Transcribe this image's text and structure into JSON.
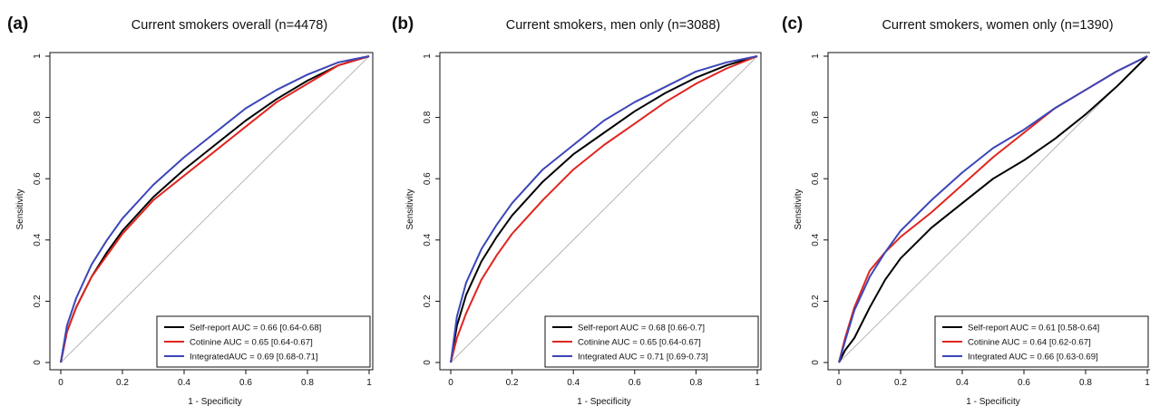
{
  "chart_data": [
    {
      "type": "line",
      "panel_label": "(a)",
      "title": "Current smokers overall (n=4478)",
      "xlabel": "1 - Specificity",
      "ylabel": "Sensitivity",
      "xlim": [
        0,
        1
      ],
      "ylim": [
        0,
        1
      ],
      "xticks": [
        0,
        0.2,
        0.4,
        0.6,
        0.8,
        1
      ],
      "yticks": [
        0,
        0.2,
        0.4,
        0.6,
        0.8,
        1
      ],
      "xtick_labels": [
        "0",
        "0.2",
        "0.4",
        "0.6",
        "0.8",
        "1"
      ],
      "ytick_labels": [
        "0",
        "0.2",
        "0.4",
        "0.6",
        "0.8",
        "1"
      ],
      "grid": false,
      "legend_position": "bottom-right",
      "reference_line": true,
      "series": [
        {
          "name": "Self-report AUC = 0.66 [0.64-0.68]",
          "color": "#000000",
          "x": [
            0,
            0.02,
            0.05,
            0.1,
            0.15,
            0.2,
            0.3,
            0.4,
            0.5,
            0.6,
            0.7,
            0.8,
            0.9,
            1
          ],
          "y": [
            0,
            0.1,
            0.18,
            0.28,
            0.36,
            0.43,
            0.54,
            0.63,
            0.71,
            0.79,
            0.86,
            0.92,
            0.97,
            1
          ]
        },
        {
          "name": "Cotinine AUC = 0.65 [0.64-0.67]",
          "color": "#e0251f",
          "x": [
            0,
            0.02,
            0.05,
            0.1,
            0.15,
            0.2,
            0.3,
            0.4,
            0.5,
            0.6,
            0.7,
            0.8,
            0.9,
            1
          ],
          "y": [
            0,
            0.1,
            0.18,
            0.28,
            0.35,
            0.42,
            0.53,
            0.61,
            0.69,
            0.77,
            0.85,
            0.91,
            0.97,
            1
          ]
        },
        {
          "name": "IntegratedAUC = 0.69 [0.68-0.71]",
          "color": "#3b46b8",
          "x": [
            0,
            0.02,
            0.05,
            0.1,
            0.15,
            0.2,
            0.3,
            0.4,
            0.5,
            0.6,
            0.7,
            0.8,
            0.9,
            1
          ],
          "y": [
            0,
            0.12,
            0.21,
            0.32,
            0.4,
            0.47,
            0.58,
            0.67,
            0.75,
            0.83,
            0.89,
            0.94,
            0.98,
            1
          ]
        }
      ]
    },
    {
      "type": "line",
      "panel_label": "(b)",
      "title": "Current smokers, men only (n=3088)",
      "xlabel": "1 - Specificity",
      "ylabel": "Sensitivity",
      "xlim": [
        0,
        1
      ],
      "ylim": [
        0,
        1
      ],
      "xticks": [
        0,
        0.2,
        0.4,
        0.6,
        0.8,
        1
      ],
      "yticks": [
        0,
        0.2,
        0.4,
        0.6,
        0.8,
        1
      ],
      "xtick_labels": [
        "0",
        "0.2",
        "0.4",
        "0.6",
        "0.8",
        "1"
      ],
      "ytick_labels": [
        "0",
        "0.2",
        "0.4",
        "0.6",
        "0.8",
        "1"
      ],
      "grid": false,
      "legend_position": "bottom-right",
      "reference_line": true,
      "series": [
        {
          "name": "Self-report AUC = 0.68 [0.66-0.7]",
          "color": "#000000",
          "x": [
            0,
            0.02,
            0.05,
            0.1,
            0.15,
            0.2,
            0.3,
            0.4,
            0.5,
            0.6,
            0.7,
            0.8,
            0.9,
            1
          ],
          "y": [
            0,
            0.12,
            0.22,
            0.33,
            0.41,
            0.48,
            0.59,
            0.68,
            0.75,
            0.82,
            0.88,
            0.93,
            0.97,
            1
          ]
        },
        {
          "name": "Cotinine AUC = 0.65 [0.64-0.67]",
          "color": "#e0251f",
          "x": [
            0,
            0.02,
            0.05,
            0.1,
            0.15,
            0.2,
            0.3,
            0.4,
            0.5,
            0.6,
            0.7,
            0.8,
            0.9,
            1
          ],
          "y": [
            0,
            0.08,
            0.16,
            0.27,
            0.35,
            0.42,
            0.53,
            0.63,
            0.71,
            0.78,
            0.85,
            0.91,
            0.96,
            1
          ]
        },
        {
          "name": "Integrated AUC = 0.71 [0.69-0.73]",
          "color": "#3b46b8",
          "x": [
            0,
            0.02,
            0.05,
            0.1,
            0.15,
            0.2,
            0.3,
            0.4,
            0.5,
            0.6,
            0.7,
            0.8,
            0.9,
            1
          ],
          "y": [
            0,
            0.15,
            0.26,
            0.37,
            0.45,
            0.52,
            0.63,
            0.71,
            0.79,
            0.85,
            0.9,
            0.95,
            0.98,
            1
          ]
        }
      ]
    },
    {
      "type": "line",
      "panel_label": "(c)",
      "title": "Current smokers, women only (n=1390)",
      "xlabel": "1 - Specificity",
      "ylabel": "Sensitivity",
      "xlim": [
        0,
        1
      ],
      "ylim": [
        0,
        1
      ],
      "xticks": [
        0,
        0.2,
        0.4,
        0.6,
        0.8,
        1
      ],
      "yticks": [
        0,
        0.2,
        0.4,
        0.6,
        0.8,
        1
      ],
      "xtick_labels": [
        "0",
        "0.2",
        "0.4",
        "0.6",
        "0.8",
        "1"
      ],
      "ytick_labels": [
        "0",
        "0.2",
        "0.4",
        "0.6",
        "0.8",
        "1"
      ],
      "grid": false,
      "legend_position": "bottom-right",
      "reference_line": true,
      "series": [
        {
          "name": "Self-report AUC = 0.61 [0.58-0.64]",
          "color": "#000000",
          "x": [
            0,
            0.02,
            0.05,
            0.1,
            0.15,
            0.2,
            0.3,
            0.4,
            0.5,
            0.6,
            0.7,
            0.8,
            0.9,
            1
          ],
          "y": [
            0,
            0.04,
            0.08,
            0.18,
            0.27,
            0.34,
            0.44,
            0.52,
            0.6,
            0.66,
            0.73,
            0.81,
            0.9,
            1
          ]
        },
        {
          "name": "Cotinine AUC = 0.64 [0.62-0.67]",
          "color": "#e0251f",
          "x": [
            0,
            0.02,
            0.05,
            0.1,
            0.15,
            0.2,
            0.3,
            0.4,
            0.5,
            0.6,
            0.7,
            0.8,
            0.9,
            1
          ],
          "y": [
            0,
            0.08,
            0.18,
            0.3,
            0.36,
            0.41,
            0.49,
            0.58,
            0.67,
            0.75,
            0.83,
            0.89,
            0.95,
            1
          ]
        },
        {
          "name": "Integrated AUC = 0.66 [0.63-0.69]",
          "color": "#3b46b8",
          "x": [
            0,
            0.02,
            0.05,
            0.1,
            0.15,
            0.2,
            0.3,
            0.4,
            0.5,
            0.6,
            0.7,
            0.8,
            0.9,
            1
          ],
          "y": [
            0,
            0.07,
            0.17,
            0.28,
            0.36,
            0.43,
            0.53,
            0.62,
            0.7,
            0.76,
            0.83,
            0.89,
            0.95,
            1
          ]
        }
      ]
    }
  ]
}
